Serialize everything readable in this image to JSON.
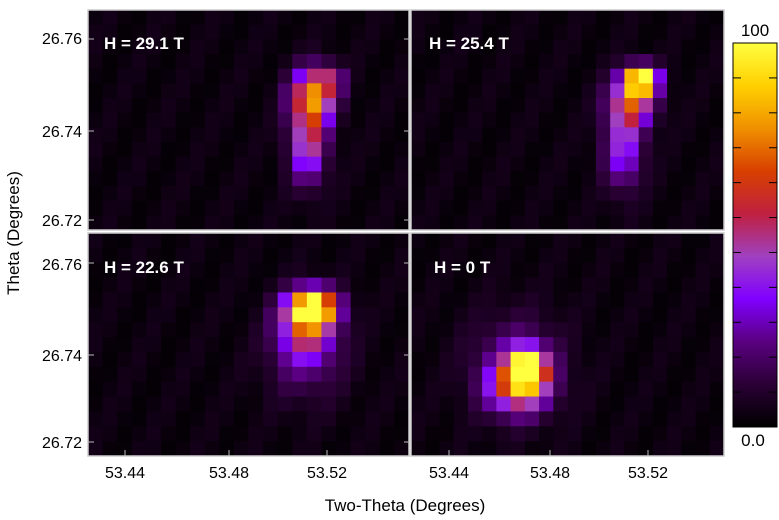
{
  "chart_data": {
    "type": "heatmap",
    "xlabel": "Two-Theta (Degrees)",
    "ylabel": "Theta (Degrees)",
    "xlim": [
      53.415,
      53.555
    ],
    "ylim": [
      26.715,
      26.767
    ],
    "x_ticks": [
      "53.44",
      "53.48",
      "53.52"
    ],
    "y_ticks": [
      "26.72",
      "26.74",
      "26.76"
    ],
    "colorbar": {
      "min": 0.0,
      "max": 100,
      "min_label": "0.0",
      "max_label": "100",
      "colormap": [
        "#000000",
        "#2a0035",
        "#5a0080",
        "#8000ff",
        "#a040c0",
        "#c02040",
        "#d84000",
        "#f09000",
        "#ffd000",
        "#ffff40"
      ]
    },
    "panels": [
      {
        "label": "H = 29.1 T",
        "peaks": [
          {
            "x": 53.513,
            "y": 26.7465,
            "amp": 68,
            "sx": 0.0065,
            "sy": 0.0045
          },
          {
            "x": 53.52,
            "y": 26.7505,
            "amp": 30,
            "sx": 0.0045,
            "sy": 0.0022
          },
          {
            "x": 53.511,
            "y": 26.7355,
            "amp": 48,
            "sx": 0.0055,
            "sy": 0.0065
          }
        ]
      },
      {
        "label": "H = 25.4 T",
        "peaks": [
          {
            "x": 53.518,
            "y": 26.7505,
            "amp": 100,
            "sx": 0.005,
            "sy": 0.0022
          },
          {
            "x": 53.514,
            "y": 26.7455,
            "amp": 55,
            "sx": 0.007,
            "sy": 0.004
          },
          {
            "x": 53.51,
            "y": 26.735,
            "amp": 38,
            "sx": 0.006,
            "sy": 0.007
          }
        ]
      },
      {
        "label": "H = 22.6 T",
        "peaks": [
          {
            "x": 53.513,
            "y": 26.7495,
            "amp": 100,
            "sx": 0.0072,
            "sy": 0.003
          },
          {
            "x": 53.51,
            "y": 26.7445,
            "amp": 45,
            "sx": 0.0085,
            "sy": 0.005
          },
          {
            "x": 53.51,
            "y": 26.737,
            "amp": 15,
            "sx": 0.012,
            "sy": 0.007
          }
        ]
      },
      {
        "label": "H = 0 T",
        "peaks": [
          {
            "x": 53.467,
            "y": 26.7355,
            "amp": 100,
            "sx": 0.0055,
            "sy": 0.003
          },
          {
            "x": 53.463,
            "y": 26.731,
            "amp": 55,
            "sx": 0.009,
            "sy": 0.004
          },
          {
            "x": 53.462,
            "y": 26.736,
            "amp": 22,
            "sx": 0.014,
            "sy": 0.008
          }
        ]
      }
    ]
  }
}
